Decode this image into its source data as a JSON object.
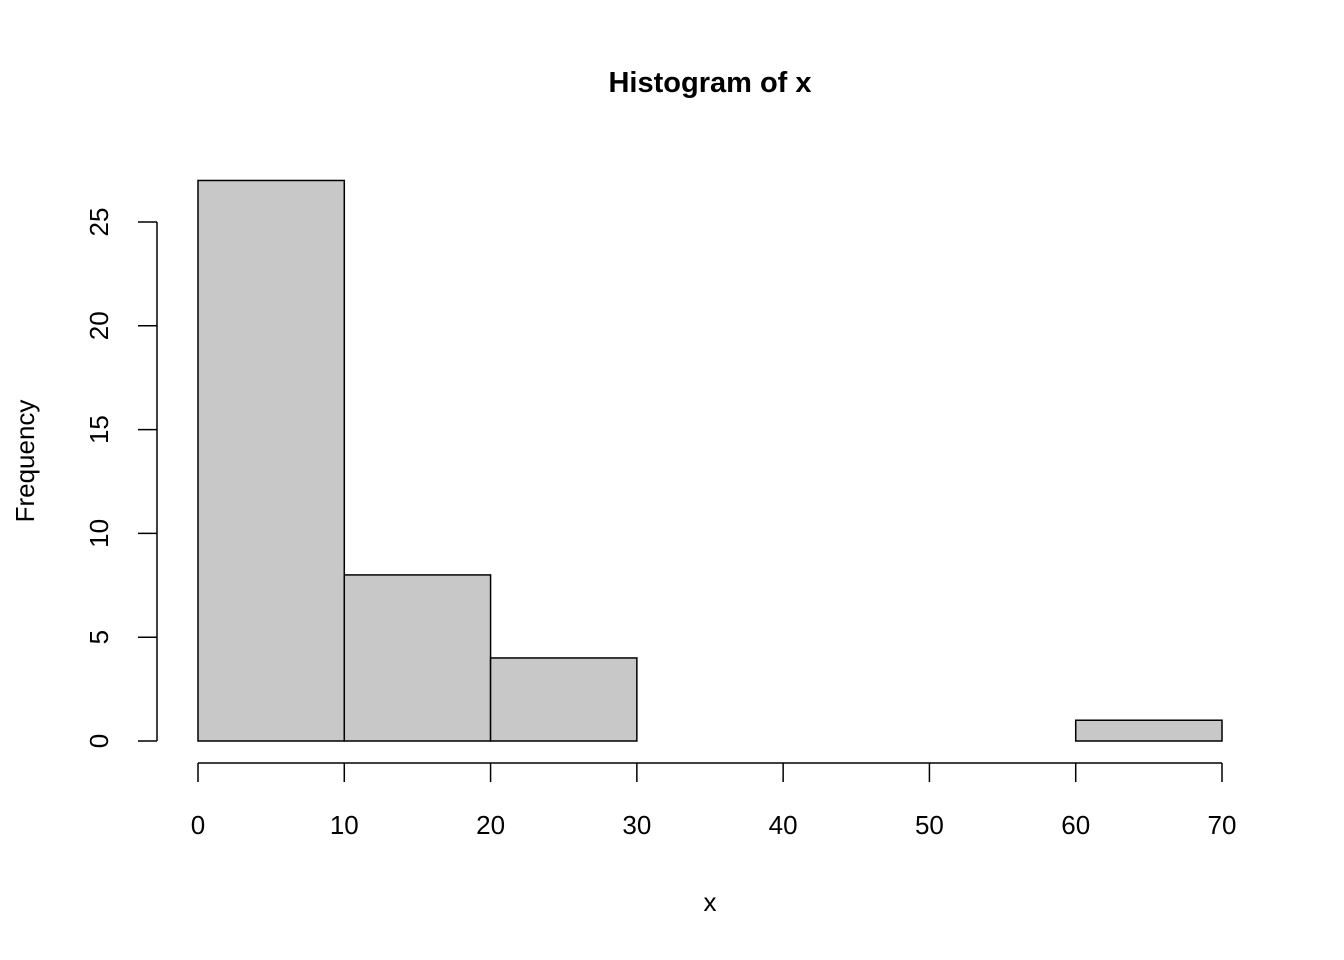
{
  "chart_data": {
    "type": "bar",
    "title": "Histogram of x",
    "xlabel": "x",
    "ylabel": "Frequency",
    "bin_edges": [
      0,
      10,
      20,
      30,
      40,
      50,
      60,
      70
    ],
    "values": [
      27,
      8,
      4,
      0,
      0,
      0,
      1
    ],
    "xlim": [
      0,
      70
    ],
    "ylim": [
      0,
      27
    ],
    "xticks": [
      0,
      10,
      20,
      30,
      40,
      50,
      60,
      70
    ],
    "yticks": [
      0,
      5,
      10,
      15,
      20,
      25
    ],
    "grid": false,
    "bar_color": "#C8C8C8",
    "edge_color": "#000000"
  }
}
